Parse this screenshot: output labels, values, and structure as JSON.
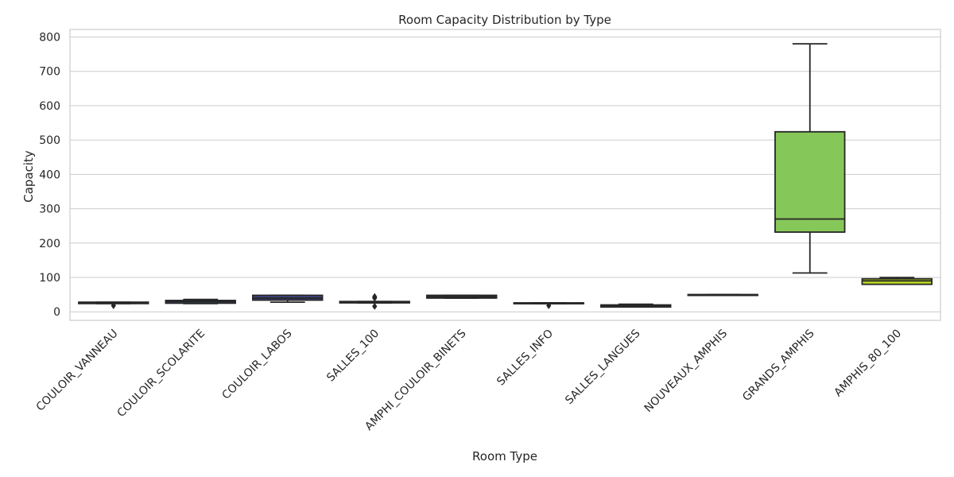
{
  "chart_data": {
    "type": "box",
    "title": "Room Capacity Distribution by Type",
    "xlabel": "Room Type",
    "ylabel": "Capacity",
    "ylim": [
      -25,
      822
    ],
    "yticks": [
      0,
      100,
      200,
      300,
      400,
      500,
      600,
      700,
      800
    ],
    "grid": true,
    "categories": [
      "COULOIR_VANNEAU",
      "COULOIR_SCOLARITE",
      "COULOIR_LABOS",
      "SALLES_100",
      "AMPHI_COULOIR_BINETS",
      "SALLES_INFO",
      "SALLES_LANGUES",
      "NOUVEAUX_AMPHIS",
      "GRANDS_AMPHIS",
      "AMPHIS_80_100"
    ],
    "boxes": [
      {
        "whisker_low": 24,
        "q1": 24,
        "median": 26,
        "q3": 28,
        "whisker_high": 28,
        "outliers": [
          18
        ],
        "color": "#31688e"
      },
      {
        "whisker_low": 24,
        "q1": 25,
        "median": 30,
        "q3": 33,
        "whisker_high": 36,
        "outliers": [],
        "color": "#3b4f8a"
      },
      {
        "whisker_low": 28,
        "q1": 34,
        "median": 40,
        "q3": 48,
        "whisker_high": 48,
        "outliers": [],
        "color": "#414487"
      },
      {
        "whisker_low": 26,
        "q1": 26,
        "median": 28,
        "q3": 30,
        "whisker_high": 30,
        "outliers": [
          16,
          40,
          44
        ],
        "color": "#2e6e8e"
      },
      {
        "whisker_low": 40,
        "q1": 40,
        "median": 44,
        "q3": 48,
        "whisker_high": 48,
        "outliers": [],
        "color": "#25858e"
      },
      {
        "whisker_low": 24,
        "q1": 24,
        "median": 24,
        "q3": 26,
        "whisker_high": 26,
        "outliers": [
          18
        ],
        "color": "#1f9e89"
      },
      {
        "whisker_low": 14,
        "q1": 14,
        "median": 18,
        "q3": 20,
        "whisker_high": 22,
        "outliers": [],
        "color": "#35b779"
      },
      {
        "whisker_low": 50,
        "q1": 50,
        "median": 50,
        "q3": 50,
        "whisker_high": 50,
        "outliers": [],
        "color": "#6ece58"
      },
      {
        "whisker_low": 113,
        "q1": 232,
        "median": 270,
        "q3": 524,
        "whisker_high": 780,
        "outliers": [],
        "color": "#86c75a"
      },
      {
        "whisker_low": 80,
        "q1": 80,
        "median": 90,
        "q3": 96,
        "whisker_high": 100,
        "outliers": [],
        "color": "#c2df23"
      }
    ]
  }
}
